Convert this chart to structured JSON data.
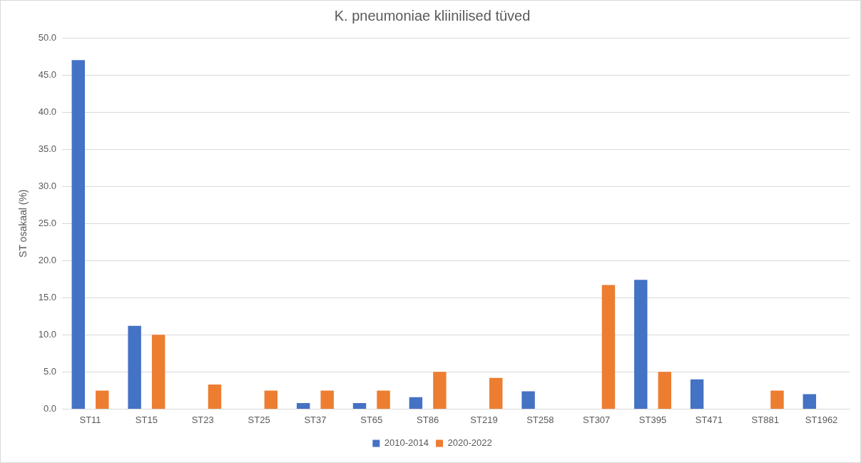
{
  "chart_data": {
    "type": "bar",
    "title": "K. pneumoniae kliinilised tüved",
    "ylabel": "ST osakaal (%)",
    "categories": [
      "ST11",
      "ST15",
      "ST23",
      "ST25",
      "ST37",
      "ST65",
      "ST86",
      "ST219",
      "ST258",
      "ST307",
      "ST395",
      "ST471",
      "ST881",
      "ST1962"
    ],
    "series": [
      {
        "name": "2010-2014",
        "color": "#4472c4",
        "values": [
          47.0,
          11.2,
          null,
          null,
          0.8,
          0.8,
          1.6,
          null,
          2.4,
          null,
          17.4,
          4.0,
          null,
          2.0
        ]
      },
      {
        "name": "2020-2022",
        "color": "#ed7d31",
        "values": [
          2.5,
          10.0,
          3.3,
          2.5,
          2.5,
          2.5,
          5.0,
          4.2,
          null,
          16.7,
          5.0,
          null,
          2.5,
          null
        ]
      }
    ],
    "ylim": [
      0,
      50
    ],
    "yticks": [
      {
        "value": 0,
        "label": "0.0"
      },
      {
        "value": 5,
        "label": "5.0"
      },
      {
        "value": 10,
        "label": "10.0"
      },
      {
        "value": 15,
        "label": "15.0"
      },
      {
        "value": 20,
        "label": "20.0"
      },
      {
        "value": 25,
        "label": "25.0"
      },
      {
        "value": 30,
        "label": "30.0"
      },
      {
        "value": 35,
        "label": "35.0"
      },
      {
        "value": 40,
        "label": "40.0"
      },
      {
        "value": 45,
        "label": "45.0"
      },
      {
        "value": 50,
        "label": "50.0"
      }
    ],
    "grid": "y",
    "legend": "bottom"
  }
}
